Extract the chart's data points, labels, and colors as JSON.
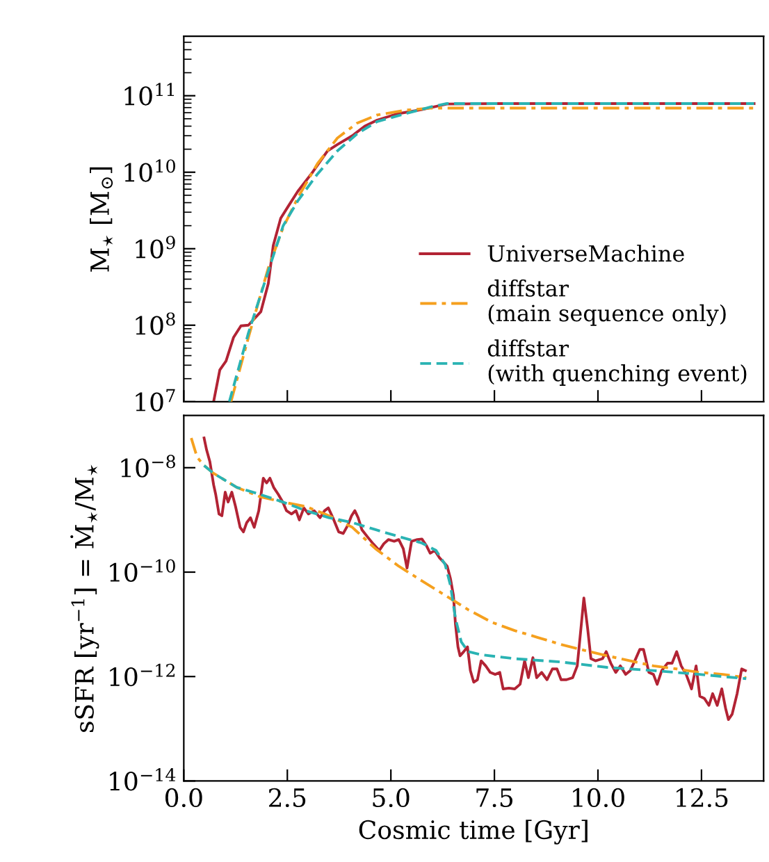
{
  "chart_data": [
    {
      "type": "line",
      "ylabel": "M$_{⋆}$ [M$_{⊙}$]",
      "log": "y",
      "xlim": [
        0,
        14
      ],
      "xticks": [
        {
          "value": 0,
          "label": null
        },
        {
          "value": 2.5,
          "label": null
        },
        {
          "value": 5,
          "label": null
        },
        {
          "value": 7.5,
          "label": null
        },
        {
          "value": 10,
          "label": null
        },
        {
          "value": 12.5,
          "label": null
        }
      ],
      "ylim": [
        10000000.0,
        600000000000.0
      ],
      "yticks": [
        {
          "value": 10000000.0,
          "label": "10$^{7}$"
        },
        {
          "value": 100000000.0,
          "label": "10$^{8}$"
        },
        {
          "value": 1000000000.0,
          "label": "10$^{9}$"
        },
        {
          "value": 10000000000.0,
          "label": "10$^{10}$"
        },
        {
          "value": 100000000000.0,
          "label": "10$^{11}$"
        }
      ],
      "tick_labels": "y",
      "grid": false,
      "legend": "lower right",
      "series": [
        {
          "name": "UniverseMachine",
          "color": "#b22334",
          "line_style": "solid",
          "x": [
            0.72,
            0.87,
            1.02,
            1.2,
            1.38,
            1.56,
            1.86,
            2.04,
            2.16,
            2.34,
            2.51,
            2.75,
            3.11,
            3.47,
            3.71,
            4.07,
            4.37,
            4.67,
            5.15,
            5.75,
            6.35,
            7.54,
            13.77
          ],
          "values": [
            10000000.0,
            26000000.0,
            34000000.0,
            69000000.0,
            98000000.0,
            100000000.0,
            150000000.0,
            350000000.0,
            1100000000.0,
            2500000000.0,
            3500000000.0,
            5600000000.0,
            10000000000.0,
            19000000000.0,
            23000000000.0,
            30000000000.0,
            40000000000.0,
            48000000000.0,
            58000000000.0,
            66000000000.0,
            78000000000.0,
            79000000000.0,
            79000000000.0
          ]
        },
        {
          "name": "diffstar\n(main sequence only)",
          "color": "#f5a01e",
          "line_style": "dashdot",
          "x": [
            1.14,
            1.56,
            2.04,
            2.4,
            2.75,
            3.23,
            3.71,
            4.19,
            4.67,
            5.39,
            5.99,
            7.54,
            13.77
          ],
          "values": [
            10000000.0,
            69000000.0,
            560000000.0,
            1900000000.0,
            4600000000.0,
            13000000000.0,
            28000000000.0,
            44000000000.0,
            56000000000.0,
            65000000000.0,
            69000000000.0,
            69000000000.0,
            69000000000.0
          ]
        },
        {
          "name": "diffstar\n(with quenching event)",
          "color": "#2ab3b3",
          "line_style": "dashed",
          "x": [
            1.1,
            1.56,
            2.04,
            2.4,
            2.75,
            3.23,
            3.71,
            4.19,
            4.67,
            5.39,
            5.99,
            6.35,
            13.77
          ],
          "values": [
            10000000.0,
            79000000.0,
            510000000.0,
            2000000000.0,
            4200000000.0,
            9500000000.0,
            19000000000.0,
            32000000000.0,
            46000000000.0,
            59000000000.0,
            72000000000.0,
            79000000000.0,
            79000000000.0
          ]
        }
      ]
    },
    {
      "type": "line",
      "xlabel": "Cosmic time [Gyr]",
      "ylabel": "sSFR [yr$^{−1}$] = Ṁ$_{⋆}$/M$_{⋆}$",
      "log": "y",
      "xlim": [
        0,
        14
      ],
      "xticks": [
        {
          "value": 0,
          "label": "0.0"
        },
        {
          "value": 2.5,
          "label": "2.5"
        },
        {
          "value": 5,
          "label": "5.0"
        },
        {
          "value": 7.5,
          "label": "7.5"
        },
        {
          "value": 10,
          "label": "10.0"
        },
        {
          "value": 12.5,
          "label": "12.5"
        }
      ],
      "ylim": [
        1e-14,
        1e-07
      ],
      "yticks": [
        {
          "value": 1e-14,
          "label": "10$^{−14}$"
        },
        {
          "value": 1e-12,
          "label": "10$^{−12}$"
        },
        {
          "value": 1e-10,
          "label": "10$^{−10}$"
        },
        {
          "value": 1e-08,
          "label": "10$^{−8}$"
        }
      ],
      "grid": false,
      "series": [
        {
          "color": "#b22334",
          "line_style": "solid",
          "x": [
            0.49,
            0.55,
            0.63,
            0.72,
            0.77,
            0.85,
            0.92,
            1.0,
            1.07,
            1.16,
            1.25,
            1.36,
            1.44,
            1.52,
            1.61,
            1.7,
            1.81,
            1.92,
            2.0,
            2.08,
            2.17,
            2.28,
            2.39,
            2.48,
            2.6,
            2.71,
            2.79,
            2.9,
            3.01,
            3.15,
            3.29,
            3.4,
            3.49,
            3.6,
            3.74,
            3.85,
            3.96,
            4.05,
            4.13,
            4.21,
            4.3,
            4.43,
            4.57,
            4.72,
            4.83,
            4.94,
            5.08,
            5.19,
            5.3,
            5.39,
            5.5,
            5.64,
            5.75,
            5.86,
            5.95,
            6.06,
            6.17,
            6.29,
            6.36,
            6.44,
            6.51,
            6.56,
            6.62,
            6.67,
            6.76,
            6.85,
            6.92,
            7.0,
            7.09,
            7.18,
            7.29,
            7.4,
            7.52,
            7.63,
            7.71,
            7.85,
            7.99,
            8.12,
            8.23,
            8.32,
            8.43,
            8.52,
            8.64,
            8.77,
            8.9,
            9.01,
            9.11,
            9.24,
            9.39,
            9.5,
            9.59,
            9.66,
            9.75,
            9.83,
            9.94,
            10.11,
            10.2,
            10.31,
            10.43,
            10.54,
            10.67,
            10.78,
            10.89,
            11.01,
            11.1,
            11.23,
            11.34,
            11.43,
            11.54,
            11.68,
            11.79,
            11.9,
            12.01,
            12.13,
            12.26,
            12.37,
            12.46,
            12.57,
            12.68,
            12.77,
            12.88,
            12.99,
            13.08,
            13.15,
            13.24,
            13.36,
            13.47,
            13.56
          ],
          "values": [
            3.7e-08,
            2.2e-08,
            1.3e-08,
            4.7e-09,
            3.1e-09,
            1.3e-09,
            1.2e-09,
            3.4e-09,
            2.2e-09,
            3.4e-09,
            1.8e-09,
            7.2e-10,
            5.9e-10,
            8.9e-10,
            1.1e-09,
            7.2e-10,
            1.5e-09,
            6.3e-09,
            5.1e-09,
            6.3e-09,
            4.2e-09,
            3.1e-09,
            2.2e-09,
            1.5e-09,
            1.3e-09,
            1.5e-09,
            1e-09,
            1.7e-09,
            1.3e-09,
            1.5e-09,
            1.1e-09,
            1.5e-09,
            1.7e-09,
            1.1e-09,
            5.9e-10,
            5.5e-10,
            7.9e-10,
            1.2e-09,
            1.5e-09,
            1.1e-09,
            6.5e-10,
            4.8e-10,
            3.5e-10,
            2.6e-10,
            3.5e-10,
            4.2e-10,
            3.9e-10,
            4.2e-10,
            2.8e-10,
            1.2e-10,
            3.9e-10,
            4.2e-10,
            4.3e-10,
            3.2e-10,
            2.3e-10,
            2.6e-10,
            1.9e-10,
            1.5e-10,
            1.3e-10,
            7.4e-11,
            3.6e-11,
            1e-11,
            3.7e-12,
            2.5e-12,
            3e-12,
            3.7e-12,
            1.3e-12,
            7.8e-13,
            8.7e-13,
            2e-12,
            1.6e-12,
            1.2e-12,
            1.1e-12,
            1.2e-12,
            5.8e-13,
            6e-13,
            5.8e-13,
            7.1e-13,
            2e-12,
            9.5e-13,
            2.3e-12,
            9.5e-13,
            1.2e-12,
            8.7e-13,
            1.4e-12,
            1.4e-12,
            8.7e-13,
            8.7e-13,
            9.5e-13,
            1.6e-12,
            8.5e-12,
            3.2e-11,
            8.5e-12,
            2.2e-12,
            2e-12,
            2.2e-12,
            3e-12,
            1.8e-12,
            1.2e-12,
            1.6e-12,
            1.1e-12,
            1.3e-12,
            2e-12,
            3.3e-12,
            3.3e-12,
            1.2e-12,
            1.1e-12,
            7.1e-13,
            1.3e-12,
            1.8e-12,
            1.8e-12,
            3e-12,
            1.6e-12,
            1.1e-12,
            5.8e-13,
            1.6e-12,
            4.2e-13,
            3.8e-13,
            2.8e-13,
            4.7e-13,
            2.8e-13,
            5.8e-13,
            2.5e-13,
            1.5e-13,
            1.9e-13,
            4.7e-13,
            1.4e-12,
            1.3e-12
          ]
        },
        {
          "color": "#f5a01e",
          "line_style": "dashdot",
          "x": [
            0.18,
            0.32,
            0.49,
            0.72,
            1.28,
            1.83,
            2.39,
            2.95,
            3.51,
            4.07,
            4.63,
            5.19,
            5.75,
            6.31,
            6.87,
            7.43,
            7.99,
            8.55,
            9.11,
            9.66,
            10.22,
            10.78,
            11.34,
            11.9,
            12.46,
            13.02,
            13.58
          ],
          "values": [
            3.7e-08,
            1.6e-08,
            1.1e-08,
            7.8e-09,
            4.2e-09,
            2.8e-09,
            2.2e-09,
            1.8e-09,
            1.2e-09,
            7.2e-10,
            2.8e-10,
            1.3e-10,
            6.8e-11,
            3.6e-11,
            1.9e-11,
            1.1e-11,
            7.6e-12,
            5.6e-12,
            4.1e-12,
            3.2e-12,
            2.5e-12,
            2e-12,
            1.6e-12,
            1.4e-12,
            1.2e-12,
            1.1e-12,
            9.5e-13
          ]
        },
        {
          "color": "#2ab3b3",
          "line_style": "dashed",
          "x": [
            0.49,
            0.72,
            1.28,
            1.83,
            2.39,
            2.95,
            3.51,
            4.07,
            4.63,
            5.19,
            5.75,
            6.09,
            6.31,
            6.44,
            6.56,
            6.7,
            6.87,
            7.2,
            7.99,
            9.11,
            10.22,
            11.34,
            12.46,
            13.58
          ],
          "values": [
            1.1e-08,
            7.8e-09,
            4.2e-09,
            3.1e-09,
            2.2e-09,
            1.5e-09,
            1.1e-09,
            8.9e-10,
            6.5e-10,
            4.8e-10,
            3.6e-10,
            2.6e-10,
            1.4e-10,
            5.5e-11,
            1.3e-11,
            4.6e-12,
            3e-12,
            2.6e-12,
            2.2e-12,
            1.9e-12,
            1.5e-12,
            1.3e-12,
            1.1e-12,
            9.1e-13
          ]
        }
      ]
    }
  ]
}
